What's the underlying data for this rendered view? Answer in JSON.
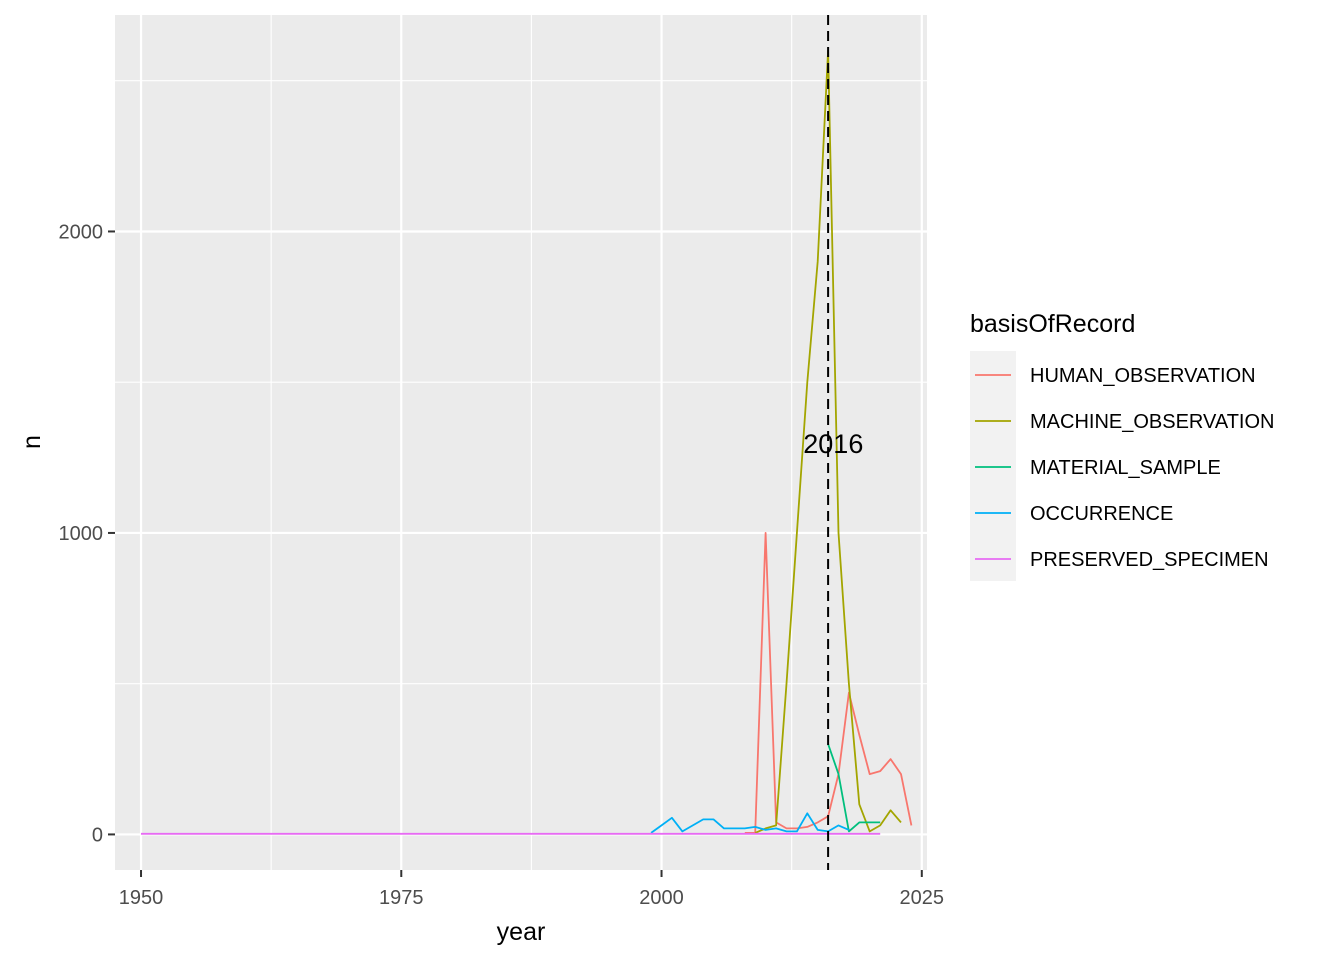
{
  "chart_data": {
    "type": "line",
    "xlabel": "year",
    "ylabel": "n",
    "xlim": [
      1947.5,
      2025.5
    ],
    "ylim": [
      -118,
      2718
    ],
    "x_ticks": [
      1950,
      1975,
      2000,
      2025
    ],
    "y_ticks": [
      0,
      1000,
      2000
    ],
    "grid": true,
    "legend": {
      "title": "basisOfRecord",
      "position": "right"
    },
    "vline": {
      "x": 2016,
      "style": "dashed",
      "color": "#000000"
    },
    "annotations": [
      {
        "text": "2016",
        "x": 2016.5,
        "y": 1295
      }
    ],
    "series": [
      {
        "name": "HUMAN_OBSERVATION",
        "color": "#F8766D",
        "points": [
          [
            2008,
            5
          ],
          [
            2009,
            5
          ],
          [
            2010,
            1000
          ],
          [
            2011,
            40
          ],
          [
            2012,
            20
          ],
          [
            2013,
            20
          ],
          [
            2014,
            25
          ],
          [
            2015,
            40
          ],
          [
            2016,
            60
          ],
          [
            2017,
            200
          ],
          [
            2018,
            470
          ],
          [
            2019,
            330
          ],
          [
            2020,
            200
          ],
          [
            2021,
            210
          ],
          [
            2022,
            250
          ],
          [
            2023,
            200
          ],
          [
            2024,
            30
          ]
        ]
      },
      {
        "name": "MACHINE_OBSERVATION",
        "color": "#A3A500",
        "points": [
          [
            2009,
            5
          ],
          [
            2010,
            20
          ],
          [
            2011,
            30
          ],
          [
            2012,
            500
          ],
          [
            2013,
            1000
          ],
          [
            2014,
            1500
          ],
          [
            2015,
            1900
          ],
          [
            2016,
            2600
          ],
          [
            2017,
            1000
          ],
          [
            2018,
            500
          ],
          [
            2019,
            100
          ],
          [
            2020,
            10
          ],
          [
            2021,
            30
          ],
          [
            2022,
            80
          ],
          [
            2023,
            40
          ]
        ]
      },
      {
        "name": "MATERIAL_SAMPLE",
        "color": "#00BF7D",
        "points": [
          [
            2016,
            300
          ],
          [
            2017,
            200
          ],
          [
            2018,
            10
          ],
          [
            2019,
            40
          ],
          [
            2020,
            40
          ],
          [
            2021,
            40
          ]
        ]
      },
      {
        "name": "OCCURRENCE",
        "color": "#00B0F6",
        "points": [
          [
            1999,
            5
          ],
          [
            2000,
            30
          ],
          [
            2001,
            55
          ],
          [
            2002,
            10
          ],
          [
            2003,
            30
          ],
          [
            2004,
            50
          ],
          [
            2005,
            50
          ],
          [
            2006,
            20
          ],
          [
            2007,
            20
          ],
          [
            2008,
            20
          ],
          [
            2009,
            25
          ],
          [
            2010,
            15
          ],
          [
            2011,
            20
          ],
          [
            2012,
            10
          ],
          [
            2013,
            10
          ],
          [
            2014,
            70
          ],
          [
            2015,
            15
          ],
          [
            2016,
            10
          ],
          [
            2017,
            30
          ],
          [
            2018,
            15
          ]
        ]
      },
      {
        "name": "PRESERVED_SPECIMEN",
        "color": "#E76BF3",
        "points": [
          [
            1950,
            2
          ],
          [
            1960,
            2
          ],
          [
            1970,
            2
          ],
          [
            1980,
            2
          ],
          [
            1990,
            2
          ],
          [
            2000,
            2
          ],
          [
            2005,
            2
          ],
          [
            2010,
            2
          ],
          [
            2015,
            2
          ],
          [
            2021,
            2
          ]
        ]
      }
    ]
  }
}
